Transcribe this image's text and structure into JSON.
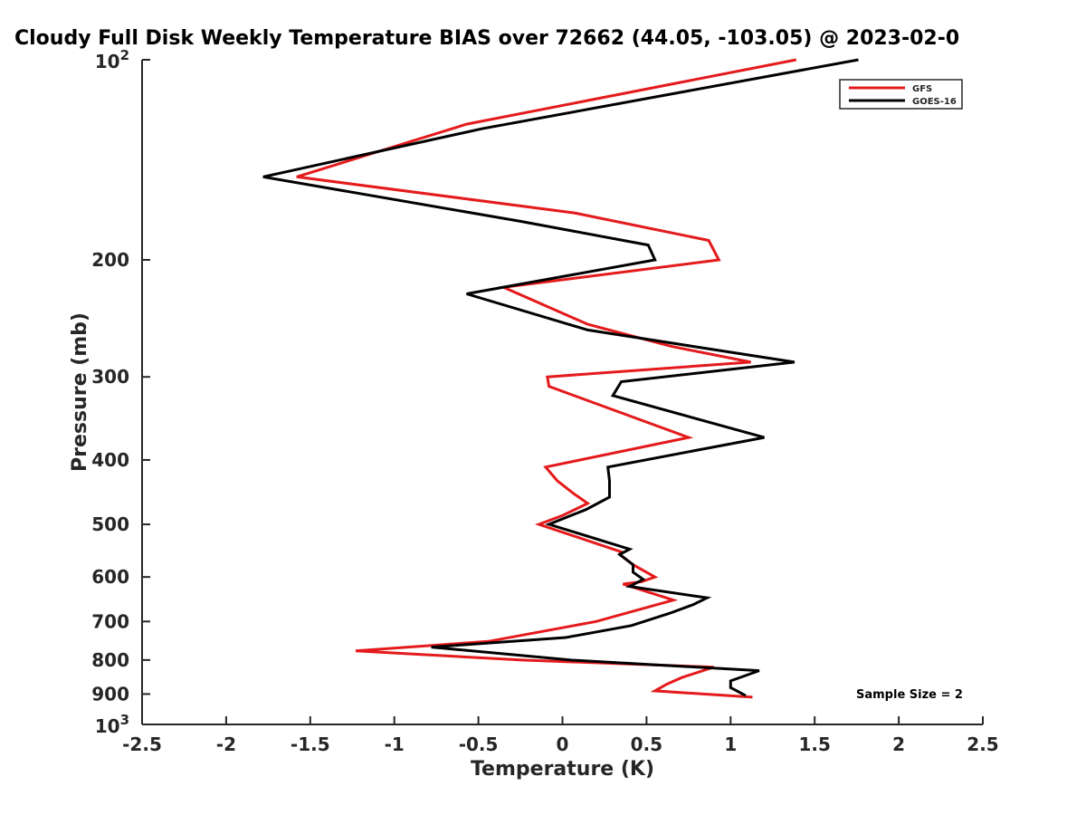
{
  "chart_data": {
    "type": "line",
    "title": "Cloudy Full Disk Weekly Temperature BIAS over 72662 (44.05, -103.05) @ 2023-02-0",
    "xlabel": "Temperature (K)",
    "ylabel": "Pressure (mb)",
    "xlim": [
      -2.5,
      2.5
    ],
    "ylim": [
      100,
      1000
    ],
    "y_scale": "log",
    "y_reversed": true,
    "x_ticks": [
      -2.5,
      -2,
      -1.5,
      -1,
      -0.5,
      0,
      0.5,
      1,
      1.5,
      2,
      2.5
    ],
    "x_tick_labels": [
      "-2.5",
      "-2",
      "-1.5",
      "-1",
      "-0.5",
      "0",
      "0.5",
      "1",
      "1.5",
      "2",
      "2.5"
    ],
    "y_ticks": [
      200,
      300,
      400,
      500,
      600,
      700,
      800,
      900
    ],
    "y_tick_labels": [
      "200",
      "300",
      "400",
      "500",
      "600",
      "700",
      "800",
      "900"
    ],
    "y_end_labels": [
      {
        "value": 100,
        "base": "10",
        "exp": "2"
      },
      {
        "value": 1000,
        "base": "10",
        "exp": "3"
      }
    ],
    "legend_position": "top-right",
    "grid": false,
    "annotation": "Sample Size = 2",
    "series": [
      {
        "name": "GFS",
        "color": "#e41a1c",
        "points": [
          [
            1.39,
            100
          ],
          [
            -0.57,
            125
          ],
          [
            -1.58,
            150
          ],
          [
            0.07,
            170
          ],
          [
            0.87,
            187
          ],
          [
            0.93,
            200
          ],
          [
            -0.35,
            220
          ],
          [
            0.15,
            250
          ],
          [
            0.65,
            270
          ],
          [
            1.12,
            285
          ],
          [
            -0.09,
            300
          ],
          [
            -0.08,
            310
          ],
          [
            0.75,
            370
          ],
          [
            -0.1,
            410
          ],
          [
            -0.03,
            430
          ],
          [
            0.07,
            450
          ],
          [
            0.15,
            465
          ],
          [
            0.0,
            485
          ],
          [
            -0.14,
            500
          ],
          [
            0.35,
            550
          ],
          [
            0.34,
            555
          ],
          [
            0.42,
            575
          ],
          [
            0.55,
            600
          ],
          [
            0.47,
            610
          ],
          [
            0.36,
            615
          ],
          [
            0.66,
            650
          ],
          [
            0.2,
            700
          ],
          [
            -0.44,
            750
          ],
          [
            -1.23,
            775
          ],
          [
            -0.24,
            800
          ],
          [
            0.9,
            820
          ],
          [
            0.71,
            850
          ],
          [
            0.62,
            870
          ],
          [
            0.55,
            890
          ],
          [
            1.13,
            910
          ]
        ]
      },
      {
        "name": "GOES-16",
        "color": "#000000",
        "points": [
          [
            1.76,
            100
          ],
          [
            -0.48,
            127
          ],
          [
            -1.78,
            150
          ],
          [
            -0.25,
            175
          ],
          [
            0.51,
            190
          ],
          [
            0.55,
            200
          ],
          [
            -0.57,
            225
          ],
          [
            0.15,
            255
          ],
          [
            0.78,
            270
          ],
          [
            1.38,
            285
          ],
          [
            0.35,
            305
          ],
          [
            0.3,
            320
          ],
          [
            1.2,
            370
          ],
          [
            0.27,
            410
          ],
          [
            0.28,
            430
          ],
          [
            0.28,
            455
          ],
          [
            0.14,
            475
          ],
          [
            -0.08,
            500
          ],
          [
            0.4,
            545
          ],
          [
            0.34,
            555
          ],
          [
            0.42,
            575
          ],
          [
            0.42,
            590
          ],
          [
            0.48,
            605
          ],
          [
            0.4,
            620
          ],
          [
            0.86,
            645
          ],
          [
            0.78,
            660
          ],
          [
            0.64,
            680
          ],
          [
            0.41,
            710
          ],
          [
            0.02,
            740
          ],
          [
            -0.78,
            765
          ],
          [
            0.05,
            800
          ],
          [
            1.17,
            830
          ],
          [
            1.0,
            860
          ],
          [
            1.0,
            880
          ],
          [
            1.09,
            905
          ]
        ]
      }
    ]
  }
}
